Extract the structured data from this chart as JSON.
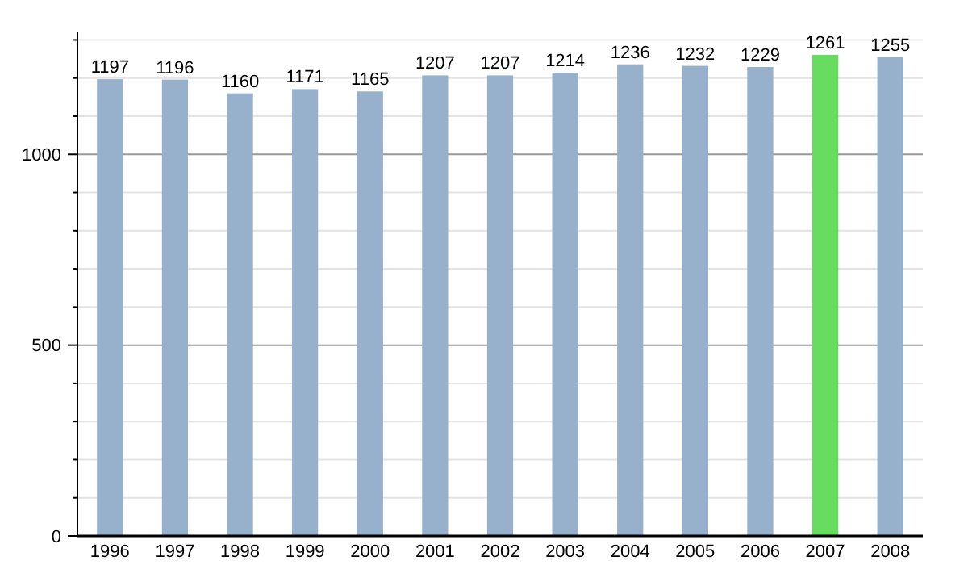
{
  "chart_data": {
    "type": "bar",
    "categories": [
      "1996",
      "1997",
      "1998",
      "1999",
      "2000",
      "2001",
      "2002",
      "2003",
      "2004",
      "2005",
      "2006",
      "2007",
      "2008"
    ],
    "values": [
      1197,
      1196,
      1160,
      1171,
      1165,
      1207,
      1207,
      1214,
      1236,
      1232,
      1229,
      1261,
      1255
    ],
    "colors": [
      "#97b0cc",
      "#97b0cc",
      "#97b0cc",
      "#97b0cc",
      "#97b0cc",
      "#97b0cc",
      "#97b0cc",
      "#97b0cc",
      "#97b0cc",
      "#97b0cc",
      "#97b0cc",
      "#66dd5e",
      "#97b0cc"
    ],
    "data_labels": true,
    "grid": "y",
    "ylim": [
      0,
      1320
    ],
    "yticks": [
      0,
      {
        "value": 100,
        "label": null
      },
      {
        "value": 200,
        "label": null
      },
      {
        "value": 300,
        "label": null
      },
      {
        "value": 400,
        "label": null
      },
      500,
      {
        "value": 600,
        "label": null
      },
      {
        "value": 700,
        "label": null
      },
      {
        "value": 800,
        "label": null
      },
      {
        "value": 900,
        "label": null
      },
      1000,
      {
        "value": 1100,
        "label": null
      },
      {
        "value": 1200,
        "label": null
      },
      {
        "value": 1300,
        "label": null
      }
    ]
  }
}
